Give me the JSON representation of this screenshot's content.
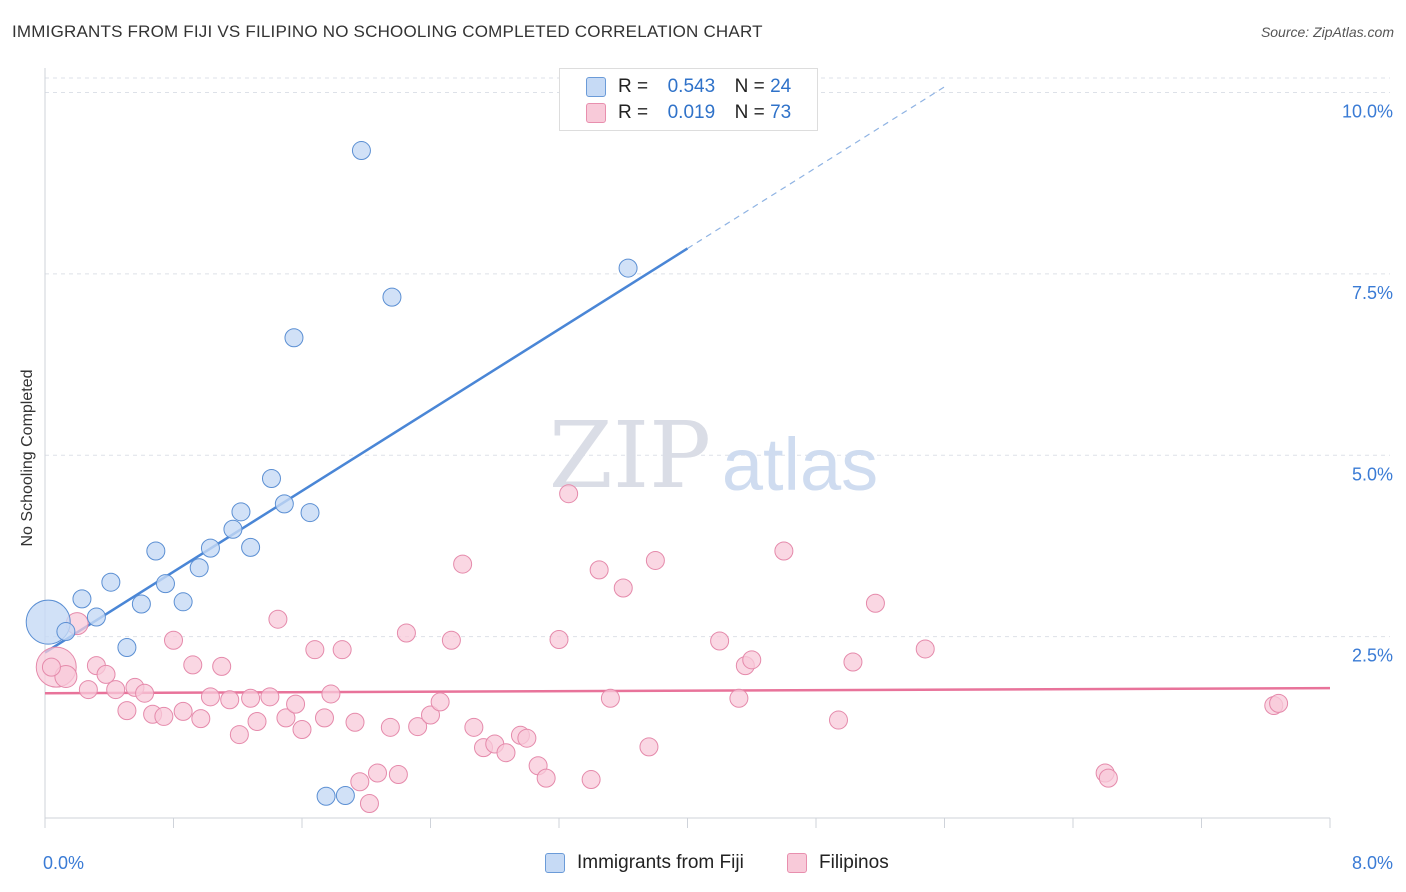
{
  "header": {
    "title": "IMMIGRANTS FROM FIJI VS FILIPINO NO SCHOOLING COMPLETED CORRELATION CHART",
    "source": "Source: ZipAtlas.com"
  },
  "watermark": {
    "zip": "ZIP",
    "atlas": "atlas"
  },
  "legend": {
    "series1": {
      "r_label": "R =",
      "r_value": "0.543",
      "n_label": "N =",
      "n_value": "24"
    },
    "series2": {
      "r_label": "R =",
      "r_value": "0.019",
      "n_label": "N =",
      "n_value": "73"
    }
  },
  "chart_data": {
    "type": "scatter",
    "title": "IMMIGRANTS FROM FIJI VS FILIPINO NO SCHOOLING COMPLETED CORRELATION CHART",
    "xlabel": "",
    "ylabel": "No Schooling Completed",
    "xlim": [
      0,
      8
    ],
    "ylim": [
      0,
      10.2
    ],
    "x_tick_labels": [
      "0.0%",
      "8.0%"
    ],
    "y_ticks": [
      2.5,
      5.0,
      7.5,
      10.0
    ],
    "y_tick_labels": [
      "2.5%",
      "5.0%",
      "7.5%",
      "10.0%"
    ],
    "grid": true,
    "legend_position": "top-center",
    "colors": {
      "fiji": "#4a86d6",
      "fiji_fill": "#c6daf5",
      "filipino": "#e8739a",
      "filipino_fill": "#f8cad9"
    },
    "series": [
      {
        "name": "Immigrants from Fiji",
        "r": 0.543,
        "n": 24,
        "trend": {
          "x0": 0.0,
          "y0": 2.28,
          "x1": 4.0,
          "y1": 7.85,
          "dashed_to_x": 5.6
        },
        "points": [
          [
            0.02,
            2.7,
            22
          ],
          [
            0.13,
            2.57,
            9
          ],
          [
            0.23,
            3.02,
            9
          ],
          [
            0.32,
            2.77,
            9
          ],
          [
            0.41,
            3.25,
            9
          ],
          [
            0.51,
            2.35,
            9
          ],
          [
            0.6,
            2.95,
            9
          ],
          [
            0.69,
            3.68,
            9
          ],
          [
            0.75,
            3.23,
            9
          ],
          [
            0.86,
            2.98,
            9
          ],
          [
            0.96,
            3.45,
            9
          ],
          [
            1.03,
            3.72,
            9
          ],
          [
            1.17,
            3.98,
            9
          ],
          [
            1.22,
            4.22,
            9
          ],
          [
            1.28,
            3.73,
            9
          ],
          [
            1.41,
            4.68,
            9
          ],
          [
            1.49,
            4.33,
            9
          ],
          [
            1.55,
            6.62,
            9
          ],
          [
            1.65,
            4.21,
            9
          ],
          [
            1.75,
            0.3,
            9
          ],
          [
            1.87,
            0.31,
            9
          ],
          [
            1.97,
            9.2,
            9
          ],
          [
            2.16,
            7.18,
            9
          ],
          [
            3.63,
            7.58,
            9
          ]
        ]
      },
      {
        "name": "Filipinos",
        "r": 0.019,
        "n": 73,
        "trend": {
          "x0": 0.0,
          "y0": 1.72,
          "x1": 8.0,
          "y1": 1.79
        },
        "points": [
          [
            0.07,
            2.08,
            20
          ],
          [
            0.13,
            1.95,
            11
          ],
          [
            0.2,
            2.68,
            11
          ],
          [
            0.27,
            1.77,
            9
          ],
          [
            0.32,
            2.1,
            9
          ],
          [
            0.38,
            1.98,
            9
          ],
          [
            0.44,
            1.77,
            9
          ],
          [
            0.51,
            1.48,
            9
          ],
          [
            0.56,
            1.8,
            9
          ],
          [
            0.62,
            1.72,
            9
          ],
          [
            0.67,
            1.43,
            9
          ],
          [
            0.74,
            1.4,
            9
          ],
          [
            0.8,
            2.45,
            9
          ],
          [
            0.86,
            1.47,
            9
          ],
          [
            0.92,
            2.11,
            9
          ],
          [
            0.97,
            1.37,
            9
          ],
          [
            1.03,
            1.67,
            9
          ],
          [
            1.1,
            2.09,
            9
          ],
          [
            1.15,
            1.63,
            9
          ],
          [
            1.21,
            1.15,
            9
          ],
          [
            1.28,
            1.65,
            9
          ],
          [
            1.32,
            1.33,
            9
          ],
          [
            1.4,
            1.67,
            9
          ],
          [
            1.45,
            2.74,
            9
          ],
          [
            1.5,
            1.38,
            9
          ],
          [
            1.56,
            1.57,
            9
          ],
          [
            1.6,
            1.22,
            9
          ],
          [
            1.68,
            2.32,
            9
          ],
          [
            1.74,
            1.38,
            9
          ],
          [
            1.78,
            1.71,
            9
          ],
          [
            1.85,
            2.32,
            9
          ],
          [
            1.93,
            1.32,
            9
          ],
          [
            1.96,
            0.5,
            9
          ],
          [
            2.02,
            0.2,
            9
          ],
          [
            2.07,
            0.62,
            9
          ],
          [
            2.15,
            1.25,
            9
          ],
          [
            2.2,
            0.6,
            9
          ],
          [
            2.25,
            2.55,
            9
          ],
          [
            2.32,
            1.26,
            9
          ],
          [
            2.4,
            1.42,
            9
          ],
          [
            2.46,
            1.6,
            9
          ],
          [
            2.53,
            2.45,
            9
          ],
          [
            2.6,
            3.5,
            9
          ],
          [
            2.67,
            1.25,
            9
          ],
          [
            2.73,
            0.97,
            9
          ],
          [
            2.8,
            1.02,
            9
          ],
          [
            2.87,
            0.9,
            9
          ],
          [
            2.96,
            1.14,
            9
          ],
          [
            3.0,
            1.1,
            9
          ],
          [
            3.07,
            0.72,
            9
          ],
          [
            3.12,
            0.55,
            9
          ],
          [
            3.2,
            2.46,
            9
          ],
          [
            3.26,
            4.47,
            9
          ],
          [
            3.4,
            0.53,
            9
          ],
          [
            3.45,
            3.42,
            9
          ],
          [
            3.52,
            1.65,
            9
          ],
          [
            3.6,
            3.17,
            9
          ],
          [
            3.76,
            0.98,
            9
          ],
          [
            3.8,
            3.55,
            9
          ],
          [
            4.2,
            2.44,
            9
          ],
          [
            4.32,
            1.65,
            9
          ],
          [
            4.36,
            2.1,
            9
          ],
          [
            4.4,
            2.18,
            9
          ],
          [
            4.6,
            3.68,
            9
          ],
          [
            4.94,
            1.35,
            9
          ],
          [
            5.03,
            2.15,
            9
          ],
          [
            5.17,
            2.96,
            9
          ],
          [
            5.48,
            2.33,
            9
          ],
          [
            6.6,
            0.62,
            9
          ],
          [
            6.62,
            0.55,
            9
          ],
          [
            7.65,
            1.55,
            9
          ],
          [
            7.68,
            1.58,
            9
          ],
          [
            0.04,
            2.08,
            9
          ]
        ]
      }
    ]
  },
  "bottom_legend": {
    "fiji_label": "Immigrants from Fiji",
    "filipino_label": "Filipinos"
  }
}
